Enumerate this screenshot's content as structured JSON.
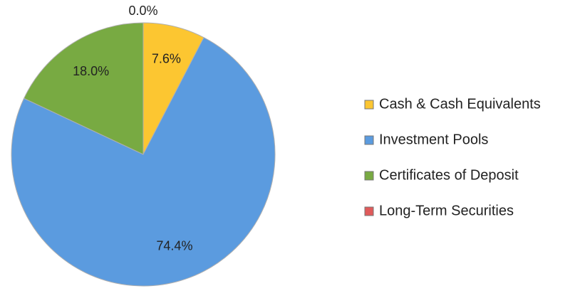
{
  "chart_data": {
    "type": "pie",
    "categories": [
      "Cash & Cash Equivalents",
      "Investment Pools",
      "Certificates of Deposit",
      "Long-Term Securities"
    ],
    "values": [
      7.6,
      74.4,
      18.0,
      0.0
    ],
    "value_labels": [
      "7.6%",
      "74.4%",
      "18.0%",
      "0.0%"
    ],
    "colors": [
      "#fcc631",
      "#5b9bdf",
      "#78aa42",
      "#e05a5a"
    ],
    "legend": "right"
  }
}
